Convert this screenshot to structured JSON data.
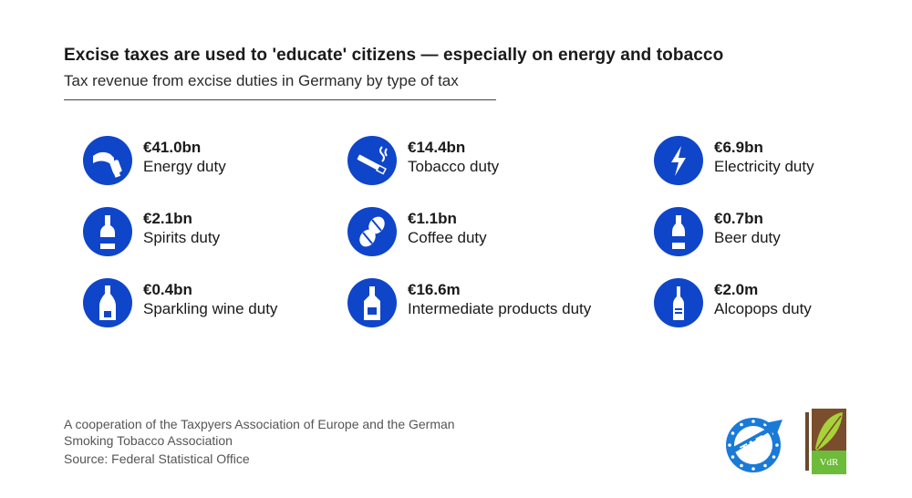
{
  "header": {
    "title": "Excise taxes are used to 'educate' citizens — especially on energy and tobacco",
    "subtitle": "Tax revenue from excise duties in Germany by type of tax"
  },
  "accent_color": "#0f45c9",
  "items": [
    {
      "value": "€41.0bn",
      "label": "Energy duty",
      "icon": "fuel-nozzle-icon"
    },
    {
      "value": "€14.4bn",
      "label": "Tobacco duty",
      "icon": "cigarette-icon"
    },
    {
      "value": "€6.9bn",
      "label": "Electricity duty",
      "icon": "lightning-icon"
    },
    {
      "value": "€2.1bn",
      "label": "Spirits duty",
      "icon": "spirits-bottle-icon"
    },
    {
      "value": "€1.1bn",
      "label": "Coffee duty",
      "icon": "coffee-beans-icon"
    },
    {
      "value": "€0.7bn",
      "label": "Beer duty",
      "icon": "beer-bottle-icon"
    },
    {
      "value": "€0.4bn",
      "label": "Sparkling wine duty",
      "icon": "sparkling-wine-bottle-icon"
    },
    {
      "value": "€16.6m",
      "label": "Intermediate products duty",
      "icon": "intermediate-bottle-icon"
    },
    {
      "value": "€2.0m",
      "label": "Alcopops duty",
      "icon": "alcopop-bottle-icon"
    }
  ],
  "footer": {
    "cooperation": "A cooperation of the Taxpyers Association of Europe and the German Smoking Tobacco Association",
    "source": "Source: Federal Statistical Office"
  },
  "logos": {
    "tae": "TAE",
    "vdr": "VdR"
  }
}
